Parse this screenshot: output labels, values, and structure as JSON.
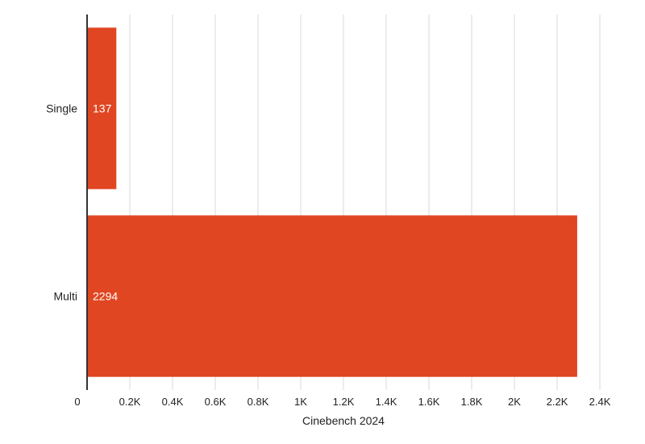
{
  "chart_data": {
    "type": "bar",
    "orientation": "horizontal",
    "categories": [
      "Single",
      "Multi"
    ],
    "values": [
      137,
      2294
    ],
    "value_labels": [
      "137",
      "2294"
    ],
    "xlabel": "Cinebench 2024",
    "xlim": [
      0,
      2400
    ],
    "xticks": [
      0,
      200,
      400,
      600,
      800,
      1000,
      1200,
      1400,
      1600,
      1800,
      2000,
      2200,
      2400
    ],
    "xtick_labels": [
      "0",
      "0.2K",
      "0.4K",
      "0.6K",
      "0.8K",
      "1K",
      "1.2K",
      "1.4K",
      "1.6K",
      "1.8K",
      "2K",
      "2.2K",
      "2.4K"
    ],
    "grid": true,
    "colors": {
      "bar": "#e04622"
    }
  }
}
